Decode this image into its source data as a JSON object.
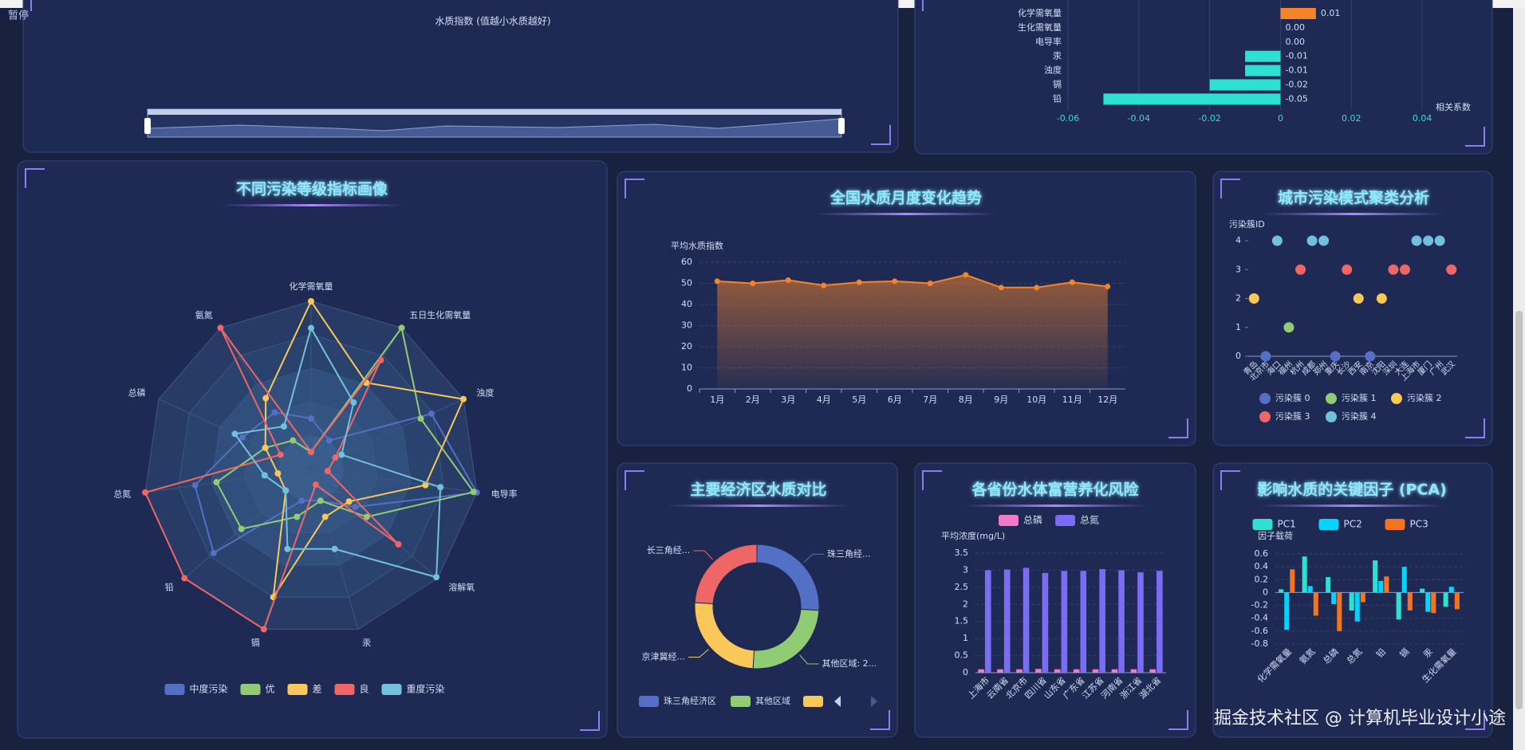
{
  "status": "暂停",
  "watermark": "掘金技术社区 @ 计算机毕业设计小途",
  "chart_data": [
    {
      "type": "slider",
      "axis_label": "水质指数 (值越小水质越好)"
    },
    {
      "type": "hbar",
      "categories": [
        "化学需氧量",
        "生化需氧量",
        "电导率",
        "汞",
        "浊度",
        "镉",
        "铅"
      ],
      "values": [
        0.01,
        0,
        0,
        -0.01,
        -0.01,
        -0.02,
        -0.05
      ],
      "value_labels": [
        "0.01",
        "0.00",
        "0.00",
        "-0.01",
        "-0.01",
        "-0.02",
        "-0.05"
      ],
      "colors": {
        "positive": "#f5832a",
        "negative": "#2de0d2"
      },
      "xlim": [
        -0.06,
        0.05
      ],
      "xticks": [
        -0.06,
        -0.04,
        -0.02,
        0,
        0.02,
        0.04
      ],
      "xlabel": "相关系数",
      "grid": true
    },
    {
      "type": "radar",
      "title": "不同污染等级指标画像",
      "indicators": [
        "化学需氧量",
        "五日生化需氧量",
        "浊度",
        "电导率",
        "溶解氧",
        "汞",
        "镉",
        "铅",
        "总氮",
        "总磷",
        "氨氮"
      ],
      "rlim": [
        0,
        1
      ],
      "series": [
        {
          "name": "中度污染",
          "color": "#5470c6",
          "values": [
            0.3,
            0.2,
            0.79,
            1.0,
            0.35,
            0.2,
            0.2,
            0.77,
            0.7,
            0.45,
            0.4
          ]
        },
        {
          "name": "优",
          "color": "#91cc75",
          "values": [
            0.1,
            1.0,
            0.72,
            0.98,
            0.44,
            0.2,
            0.3,
            0.55,
            0.57,
            0.3,
            0.2
          ]
        },
        {
          "name": "差",
          "color": "#fac858",
          "values": [
            1.0,
            0.61,
            1.0,
            0.69,
            0.3,
            0.3,
            0.8,
            0.2,
            0.2,
            0.3,
            0.5
          ]
        },
        {
          "name": "良",
          "color": "#ee6666",
          "values": [
            0.1,
            0.77,
            0.16,
            0.1,
            0.69,
            0.1,
            1.0,
            1.0,
            1.0,
            0.2,
            1.0
          ]
        },
        {
          "name": "重度污染",
          "color": "#73c0de",
          "values": [
            0.84,
            0.47,
            0.2,
            0.78,
            0.99,
            0.5,
            0.5,
            0.2,
            0.28,
            0.5,
            0.3
          ]
        }
      ]
    },
    {
      "type": "line",
      "title": "全国水质月度变化趋势",
      "ylabel": "平均水质指数",
      "categories": [
        "1月",
        "2月",
        "3月",
        "4月",
        "5月",
        "6月",
        "7月",
        "8月",
        "9月",
        "10月",
        "11月",
        "12月"
      ],
      "values": [
        51,
        50,
        51.5,
        49,
        50.5,
        51,
        50,
        54,
        48,
        48,
        50.5,
        48.5
      ],
      "color": "#f5832a",
      "ylim": [
        0,
        60
      ],
      "yticks": [
        0,
        10,
        20,
        30,
        40,
        50,
        60
      ],
      "grid": true
    },
    {
      "type": "scatter",
      "title": "城市污染模式聚类分析",
      "ylabel": "污染簇ID",
      "categories": [
        "青岛",
        "北京市",
        "海口",
        "福州",
        "杭州",
        "成都",
        "郑州",
        "重庆",
        "长沙",
        "西安",
        "南京",
        "沈阳",
        "深圳",
        "大连",
        "上海市",
        "厦门",
        "广州",
        "武汉"
      ],
      "values": [
        2,
        0,
        4,
        1,
        3,
        4,
        4,
        0,
        3,
        2,
        0,
        2,
        3,
        3,
        4,
        4,
        4,
        3
      ],
      "series": [
        {
          "name": "污染簇 0",
          "color": "#5470c6"
        },
        {
          "name": "污染簇 1",
          "color": "#91cc75"
        },
        {
          "name": "污染簇 2",
          "color": "#fac858"
        },
        {
          "name": "污染簇 3",
          "color": "#ee6666"
        },
        {
          "name": "污染簇 4",
          "color": "#73c0de"
        }
      ],
      "ylim": [
        0,
        4
      ],
      "yticks": [
        0,
        1,
        2,
        3,
        4
      ]
    },
    {
      "type": "pie",
      "title": "主要经济区水质对比",
      "categories": [
        "珠三角经济区",
        "其他区域",
        "京津冀经济区",
        "长三角经济区"
      ],
      "values": [
        26,
        25,
        25,
        24
      ],
      "slice_labels": [
        "珠三角经...",
        "其他区域: 2...",
        "京津冀经...",
        "长三角经..."
      ],
      "colors": [
        "#5470c6",
        "#91cc75",
        "#fac858",
        "#ee6666"
      ]
    },
    {
      "type": "bar",
      "title": "各省份水体富营养化风险",
      "ylabel": "平均浓度(mg/L)",
      "categories": [
        "上海市",
        "云南省",
        "北京市",
        "四川省",
        "山东省",
        "广东省",
        "江苏省",
        "河南省",
        "浙江省",
        "湖北省"
      ],
      "series": [
        {
          "name": "总磷",
          "color": "#f07ac8",
          "values": [
            0.1,
            0.1,
            0.1,
            0.11,
            0.1,
            0.1,
            0.1,
            0.1,
            0.1,
            0.1
          ]
        },
        {
          "name": "总氮",
          "color": "#7b6cf6",
          "values": [
            3.0,
            3.02,
            3.07,
            2.92,
            2.98,
            2.98,
            3.03,
            3.0,
            2.94,
            2.98
          ]
        }
      ],
      "ylim": [
        0,
        3.5
      ],
      "yticks": [
        0,
        0.5,
        1,
        1.5,
        2,
        2.5,
        3,
        3.5
      ],
      "grid": true
    },
    {
      "type": "bar",
      "title": "影响水质的关键因子 (PCA)",
      "ylabel": "因子载荷",
      "categories": [
        "化学需氧量",
        "氨氮",
        "总磷",
        "总氮",
        "铅",
        "镉",
        "汞",
        "生化需氧量"
      ],
      "series": [
        {
          "name": "PC1",
          "color": "#2de0d2",
          "values": [
            0.05,
            0.56,
            0.24,
            -0.28,
            0.5,
            -0.42,
            0.06,
            -0.22
          ]
        },
        {
          "name": "PC2",
          "color": "#00d4ff",
          "values": [
            -0.58,
            0.1,
            -0.18,
            -0.45,
            0.18,
            0.4,
            -0.3,
            0.09
          ]
        },
        {
          "name": "PC3",
          "color": "#f5731f",
          "values": [
            0.36,
            -0.36,
            -0.6,
            -0.15,
            0.25,
            -0.28,
            -0.32,
            -0.26
          ]
        }
      ],
      "ylim": [
        -0.8,
        0.6
      ],
      "yticks": [
        -0.8,
        -0.6,
        -0.4,
        -0.2,
        0,
        0.2,
        0.4,
        0.6
      ],
      "grid": true
    }
  ]
}
